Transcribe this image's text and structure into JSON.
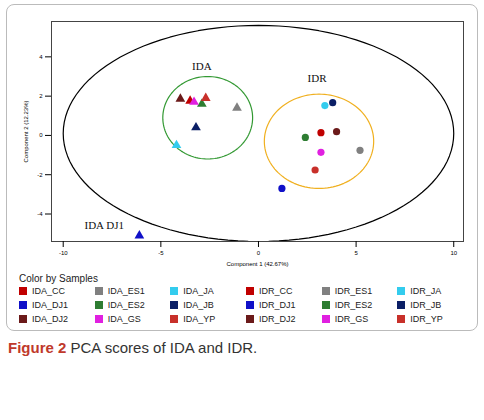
{
  "chart_data": {
    "type": "scatter",
    "xlabel": "Component 1 (42.67%)",
    "ylabel": "Component 2 (12.23%)",
    "xlim": [
      -10.6,
      10.5
    ],
    "ylim": [
      -5.4,
      5.8
    ],
    "xticks": [
      -10,
      -5,
      0,
      5,
      10
    ],
    "yticks": [
      -4,
      -2,
      0,
      2,
      4
    ],
    "grid": false,
    "legend_title": "Color by Samples",
    "caption_label": "Figure 2",
    "caption": "PCA scores of IDA and IDR.",
    "series": [
      {
        "name": "IDA_CC",
        "color": "#c00000",
        "marker": "triangle",
        "x": [
          -3.5
        ],
        "values": [
          1.76
        ]
      },
      {
        "name": "IDA_ES1",
        "color": "#808080",
        "marker": "triangle",
        "x": [
          -1.1
        ],
        "values": [
          1.4
        ]
      },
      {
        "name": "IDA_JA",
        "color": "#33ccee",
        "marker": "triangle",
        "x": [
          -4.2
        ],
        "values": [
          -0.5
        ]
      },
      {
        "name": "IDR_CC",
        "color": "#c00000",
        "marker": "circle",
        "x": [
          3.2
        ],
        "values": [
          0.14
        ]
      },
      {
        "name": "IDR_ES1",
        "color": "#808080",
        "marker": "circle",
        "x": [
          5.2
        ],
        "values": [
          -0.76
        ]
      },
      {
        "name": "IDR_JA",
        "color": "#33ccee",
        "marker": "circle",
        "x": [
          3.4
        ],
        "values": [
          1.52
        ]
      },
      {
        "name": "IDA_DJ1",
        "color": "#1010c8",
        "marker": "triangle",
        "x": [
          -6.1
        ],
        "values": [
          -5.1
        ]
      },
      {
        "name": "IDA_ES2",
        "color": "#2e7d32",
        "marker": "triangle",
        "x": [
          -2.9
        ],
        "values": [
          1.6
        ]
      },
      {
        "name": "IDA_JB",
        "color": "#0b1f66",
        "marker": "triangle",
        "x": [
          -3.2
        ],
        "values": [
          0.4
        ]
      },
      {
        "name": "IDR_DJ1",
        "color": "#1010c8",
        "marker": "circle",
        "x": [
          1.2
        ],
        "values": [
          -2.7
        ]
      },
      {
        "name": "IDR_ES2",
        "color": "#2e7d32",
        "marker": "circle",
        "x": [
          2.4
        ],
        "values": [
          -0.1
        ]
      },
      {
        "name": "IDR_JB",
        "color": "#0b1f66",
        "marker": "circle",
        "x": [
          3.8
        ],
        "values": [
          1.67
        ]
      },
      {
        "name": "IDA_DJ2",
        "color": "#6b1a1a",
        "marker": "triangle",
        "x": [
          -4.0
        ],
        "values": [
          1.86
        ]
      },
      {
        "name": "IDA_GS",
        "color": "#e020e0",
        "marker": "triangle",
        "x": [
          -3.3
        ],
        "values": [
          1.7
        ]
      },
      {
        "name": "IDA_YP",
        "color": "#c8302a",
        "marker": "triangle",
        "x": [
          -2.7
        ],
        "values": [
          1.9
        ]
      },
      {
        "name": "IDR_DJ2",
        "color": "#6b1a1a",
        "marker": "circle",
        "x": [
          4.0
        ],
        "values": [
          0.19
        ]
      },
      {
        "name": "IDR_GS",
        "color": "#e020e0",
        "marker": "circle",
        "x": [
          3.2
        ],
        "values": [
          -0.86
        ]
      },
      {
        "name": "IDR_YP",
        "color": "#c8302a",
        "marker": "circle",
        "x": [
          2.9
        ],
        "values": [
          -1.76
        ]
      }
    ],
    "ellipses": [
      {
        "cx": 0,
        "cy": 0.1,
        "rx": 10.0,
        "ry": 5.5,
        "color": "#000000"
      },
      {
        "cx": -2.6,
        "cy": 0.9,
        "rx": 2.3,
        "ry": 2.1,
        "color": "#339933"
      },
      {
        "cx": 3.1,
        "cy": -0.3,
        "rx": 2.8,
        "ry": 2.4,
        "color": "#f0b020"
      }
    ],
    "annotations": [
      {
        "text": "IDA",
        "x": -2.9,
        "y": 3.5
      },
      {
        "text": "IDR",
        "x": 3.0,
        "y": 2.9
      },
      {
        "text": "IDA DJ1",
        "x": -7.9,
        "y": -4.6
      }
    ]
  }
}
